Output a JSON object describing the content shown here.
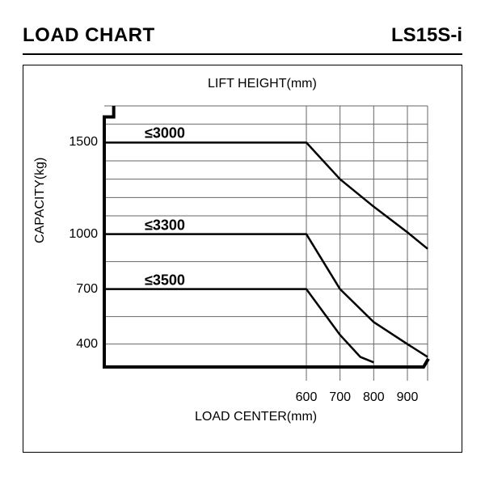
{
  "header": {
    "title": "LOAD CHART",
    "model": "LS15S-i"
  },
  "chart": {
    "type": "line",
    "top_axis_title": "LIFT HEIGHT(mm)",
    "x_axis_title": "LOAD CENTER(mm)",
    "y_axis_title": "CAPACITY(kg)",
    "background_color": "#ffffff",
    "grid_color": "#666666",
    "grid_stroke": 1,
    "series_color": "#000000",
    "series_stroke": 2.5,
    "fork_color": "#000000",
    "fork_stroke": 4,
    "text_color": "#000000",
    "tick_fontsize": 16,
    "label_fontsize_bold": 18,
    "x_ticks": [
      600,
      700,
      800,
      900
    ],
    "y_ticks": [
      400,
      700,
      1000,
      1500
    ],
    "x_min": 0,
    "x_max": 960,
    "y_min": 200,
    "y_max": 1700,
    "grid_x": [
      600,
      700,
      800,
      900,
      960
    ],
    "grid_y": [
      400,
      550,
      700,
      850,
      1000,
      1100,
      1200,
      1300,
      1400,
      1500,
      1600,
      1700
    ],
    "series": [
      {
        "label": "≤3000",
        "points": [
          [
            0,
            1500
          ],
          [
            600,
            1500
          ],
          [
            700,
            1300
          ],
          [
            800,
            1150
          ],
          [
            900,
            1010
          ],
          [
            960,
            920
          ]
        ]
      },
      {
        "label": "≤3300",
        "points": [
          [
            0,
            1000
          ],
          [
            600,
            1000
          ],
          [
            700,
            700
          ],
          [
            800,
            520
          ],
          [
            900,
            400
          ],
          [
            960,
            330
          ]
        ]
      },
      {
        "label": "≤3500",
        "points": [
          [
            0,
            700
          ],
          [
            600,
            700
          ],
          [
            700,
            450
          ],
          [
            760,
            330
          ],
          [
            800,
            300
          ]
        ]
      }
    ],
    "fork_outline": {
      "top_y": 1700,
      "notch_x": 28,
      "notch_y": 1640,
      "mast_x": 0,
      "base_y": 275,
      "toe_x": 948,
      "tip_y": 320
    }
  }
}
